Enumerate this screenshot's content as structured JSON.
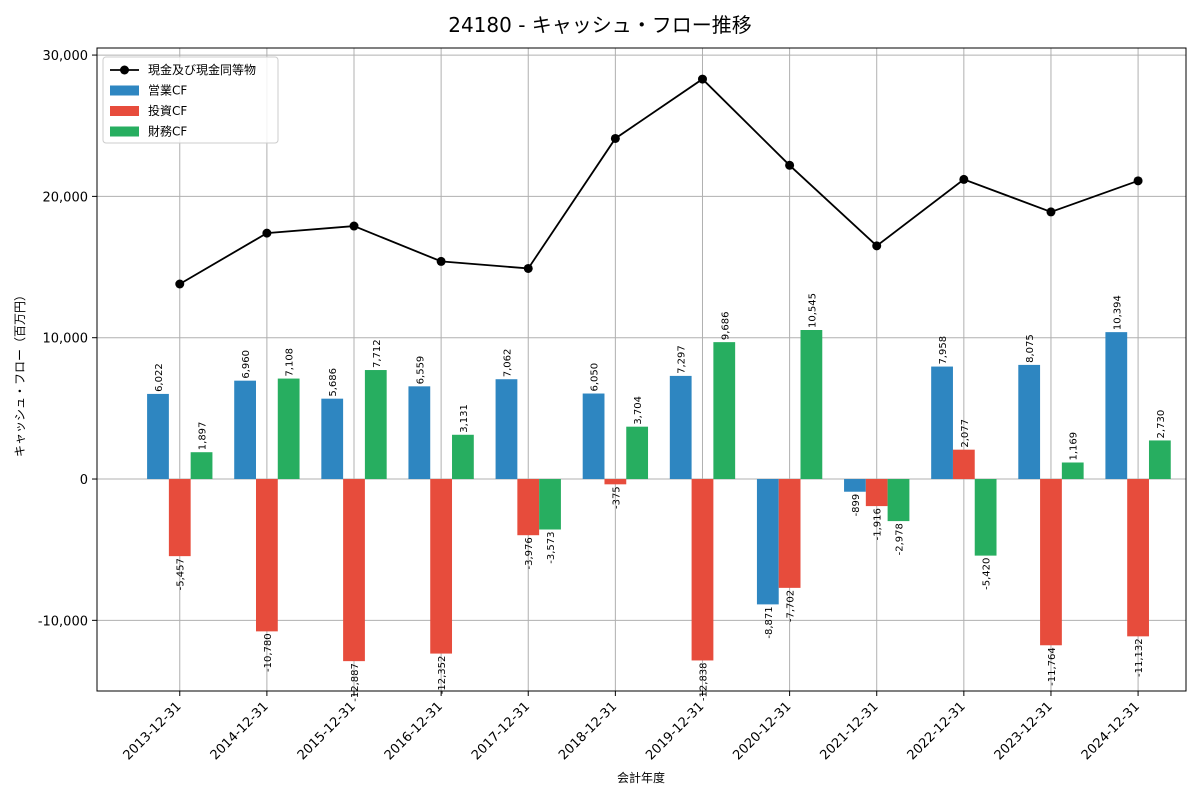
{
  "chart_data": {
    "type": "bar",
    "title": "24180 - キャッシュ・フロー推移",
    "xlabel": "会計年度",
    "ylabel": "キャッシュ・フロー（百万円）",
    "ylim": [
      -15000,
      30500
    ],
    "yticks": [
      -10000,
      0,
      10000,
      20000,
      30000
    ],
    "ytick_labels": [
      "-10,000",
      "0",
      "10,000",
      "20,000",
      "30,000"
    ],
    "grid": true,
    "legend_position": "top-left",
    "categories": [
      "2013-12-31",
      "2014-12-31",
      "2015-12-31",
      "2016-12-31",
      "2017-12-31",
      "2018-12-31",
      "2019-12-31",
      "2020-12-31",
      "2021-12-31",
      "2022-12-31",
      "2023-12-31",
      "2024-12-31"
    ],
    "series": [
      {
        "name": "営業CF",
        "kind": "bar",
        "color": "#2e86c1",
        "values": [
          6022,
          6960,
          5686,
          6559,
          7062,
          6050,
          7297,
          -8871,
          -899,
          7958,
          8075,
          10394
        ],
        "labels": [
          "6,022",
          "6,960",
          "5,686",
          "6,559",
          "7,062",
          "6,050",
          "7,297",
          "-8,871",
          "-899",
          "7,958",
          "8,075",
          "10,394"
        ]
      },
      {
        "name": "投資CF",
        "kind": "bar",
        "color": "#e74c3c",
        "values": [
          -5457,
          -10780,
          -12887,
          -12352,
          -3976,
          -375,
          -12838,
          -7702,
          -1916,
          2077,
          -11764,
          -11132
        ],
        "labels": [
          "-5,457",
          "-10,780",
          "-12,887",
          "-12,352",
          "-3,976",
          "-375",
          "-12,838",
          "-7,702",
          "-1,916",
          "2,077",
          "-11,764",
          "-11,132"
        ]
      },
      {
        "name": "財務CF",
        "kind": "bar",
        "color": "#27ae60",
        "values": [
          1897,
          7108,
          7712,
          3131,
          -3573,
          3704,
          9686,
          10545,
          -2978,
          -5420,
          1169,
          2730
        ],
        "labels": [
          "1,897",
          "7,108",
          "7,712",
          "3,131",
          "-3,573",
          "3,704",
          "9,686",
          "10,545",
          "-2,978",
          "-5,420",
          "1,169",
          "2,730"
        ]
      },
      {
        "name": "現金及び現金同等物",
        "kind": "line",
        "color": "#000000",
        "values": [
          13800,
          17400,
          17900,
          15400,
          14900,
          24100,
          28300,
          22200,
          16500,
          21200,
          18900,
          21100
        ]
      }
    ]
  }
}
